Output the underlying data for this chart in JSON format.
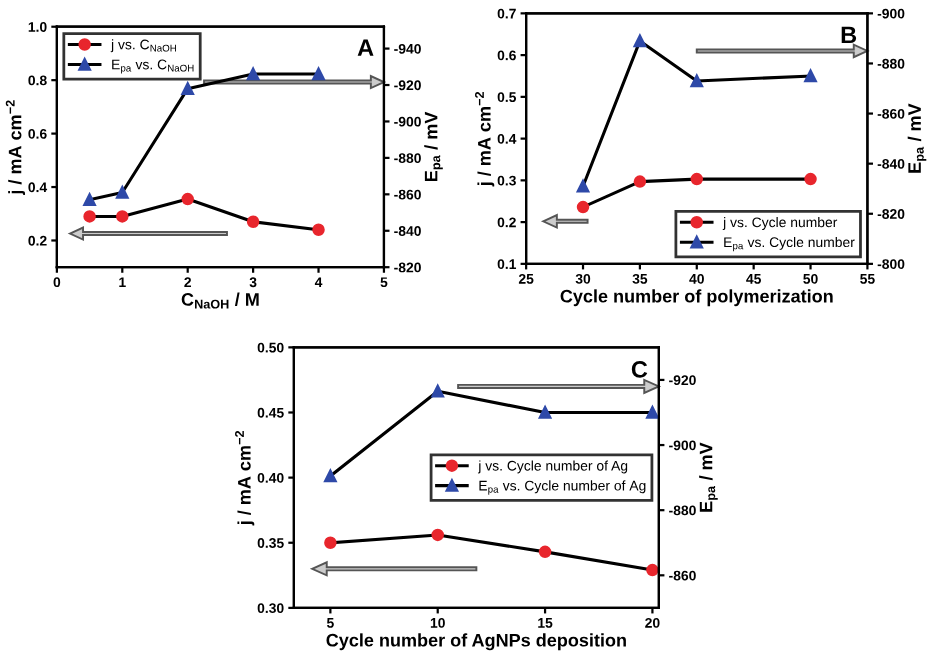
{
  "chart_data": [
    {
      "type": "line",
      "x": [
        0.5,
        1,
        2,
        3,
        4
      ],
      "xlabel": "C$_{NaOH}$ / M",
      "ylabel": "j / mA cm$^{−2}$",
      "y2label": "E$_{pa}$ / mV",
      "annotations": [
        "A"
      ],
      "legend": "top left",
      "line_style": "solid",
      "xlim": [
        0,
        5
      ],
      "xticks": [
        0,
        1,
        2,
        3,
        4,
        5
      ],
      "ylim": [
        0.1,
        1.0
      ],
      "yticks": [
        0.2,
        0.4,
        0.6,
        0.8,
        {
          "value": 1.0,
          "label": "1.0"
        }
      ],
      "y2lim": [
        -820,
        -952
      ],
      "y2ticks": [
        -820,
        -840,
        -860,
        -880,
        -900,
        -920,
        -940
      ],
      "series": [
        {
          "name": "j vs. C$_{NaOH}$",
          "color": "#e8262d",
          "marker": "circle",
          "values": [
            0.29,
            0.29,
            0.355,
            0.27,
            0.24
          ]
        },
        {
          "name": "E$_{pa}$ vs. C$_{NaOH}$",
          "color": "#2e49a8",
          "marker": "triangle",
          "axis": "y2",
          "values": [
            -857,
            -861,
            -918,
            -926,
            -926
          ]
        }
      ]
    },
    {
      "type": "line",
      "x": [
        30,
        35,
        40,
        50
      ],
      "xlabel": "Cycle number of polymerization",
      "ylabel": "j / mA cm$^{−2}$",
      "y2label": "E$_{pa}$ / mV",
      "annotations": [
        "B"
      ],
      "legend": "bottom right",
      "line_style": "solid",
      "xlim": [
        25,
        55
      ],
      "xticks": [
        25,
        30,
        35,
        40,
        45,
        50,
        55
      ],
      "ylim": [
        0.1,
        0.7
      ],
      "yticks": [
        0.1,
        0.2,
        0.3,
        0.4,
        0.5,
        0.6,
        0.7
      ],
      "y2lim": [
        -800,
        -900
      ],
      "y2ticks": [
        -800,
        -820,
        -840,
        -860,
        -880,
        -900
      ],
      "series": [
        {
          "name": "j vs. Cycle number",
          "color": "#e8262d",
          "marker": "circle",
          "values": [
            0.236,
            0.297,
            0.303,
            0.303
          ]
        },
        {
          "name": "E$_{pa}$ vs. Cycle number",
          "color": "#2e49a8",
          "marker": "triangle",
          "axis": "y2",
          "values": [
            -831,
            -889,
            -873,
            -875
          ]
        }
      ]
    },
    {
      "type": "line",
      "x": [
        5,
        10,
        15,
        20
      ],
      "xlabel": "Cycle number of AgNPs deposition",
      "ylabel": "j / mA cm$^{−2}$",
      "y2label": "E$_{pa}$ / mV",
      "annotations": [
        "C"
      ],
      "legend": "right",
      "line_style": "solid",
      "xlim": [
        3.3,
        20.3
      ],
      "xticks": [
        5,
        10,
        15,
        20
      ],
      "ylim": [
        0.3,
        0.5
      ],
      "yticks": [
        {
          "value": 0.3,
          "label": "0.30"
        },
        0.35,
        {
          "value": 0.4,
          "label": "0.40"
        },
        0.45,
        {
          "value": 0.5,
          "label": "0.50"
        }
      ],
      "y2lim": [
        -850,
        -930
      ],
      "y2ticks": [
        -860,
        -880,
        -900,
        -920
      ],
      "series": [
        {
          "name": "j vs. Cycle number of Ag",
          "color": "#e8262d",
          "marker": "circle",
          "values": [
            0.35,
            0.356,
            0.343,
            0.329
          ]
        },
        {
          "name": "E$_{pa}$ vs. Cycle number of Ag",
          "color": "#2e49a8",
          "marker": "triangle",
          "axis": "y2",
          "values": [
            -890.5,
            -916.5,
            -910,
            -910
          ]
        }
      ]
    }
  ]
}
